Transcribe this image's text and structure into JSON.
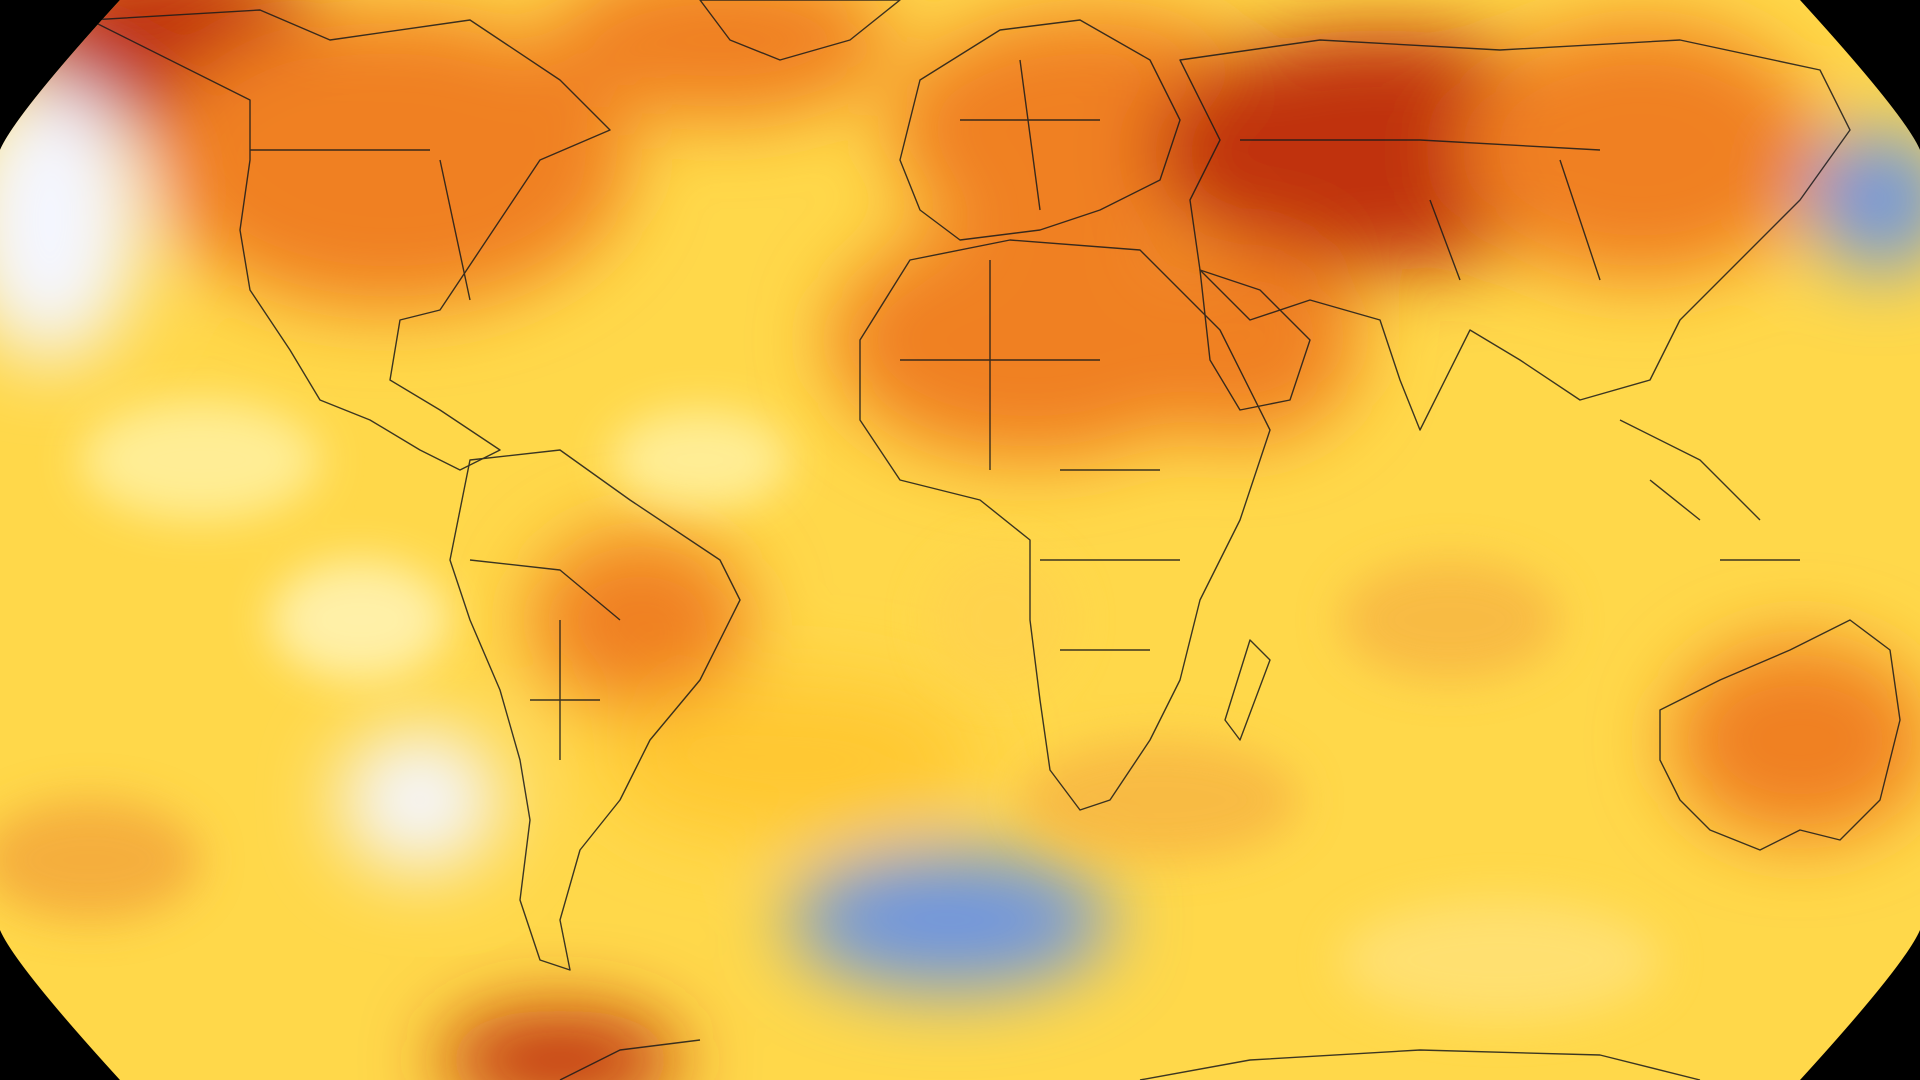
{
  "map": {
    "projection": "robinson",
    "background_color": "#000000",
    "ocean_base_color": "#FFD84A",
    "border_color": "#1A1A1A",
    "palette": {
      "cold": "#6E95E0",
      "cool": "#F4F6FF",
      "neutral": "#FFF2A0",
      "warm": "#FFC830",
      "hot": "#F08020",
      "hottest": "#C0300C"
    },
    "regions": [
      {
        "name": "alaska",
        "level": "hottest"
      },
      {
        "name": "north-america",
        "level": "hot"
      },
      {
        "name": "greenland",
        "level": "hot"
      },
      {
        "name": "europe",
        "level": "hot"
      },
      {
        "name": "central-asia",
        "level": "hottest"
      },
      {
        "name": "east-asia",
        "level": "hot"
      },
      {
        "name": "sahara",
        "level": "hot"
      },
      {
        "name": "arabia",
        "level": "hot"
      },
      {
        "name": "amazon",
        "level": "hot"
      },
      {
        "name": "australia",
        "level": "hot"
      },
      {
        "name": "south-atlantic",
        "level": "warm"
      },
      {
        "name": "antarctic-peninsula",
        "level": "hottest"
      },
      {
        "name": "north-pacific-west",
        "level": "cool"
      },
      {
        "name": "north-pacific-east",
        "level": "cold"
      },
      {
        "name": "southern-ocean",
        "level": "cold"
      },
      {
        "name": "southeast-pacific",
        "level": "cool"
      }
    ]
  }
}
